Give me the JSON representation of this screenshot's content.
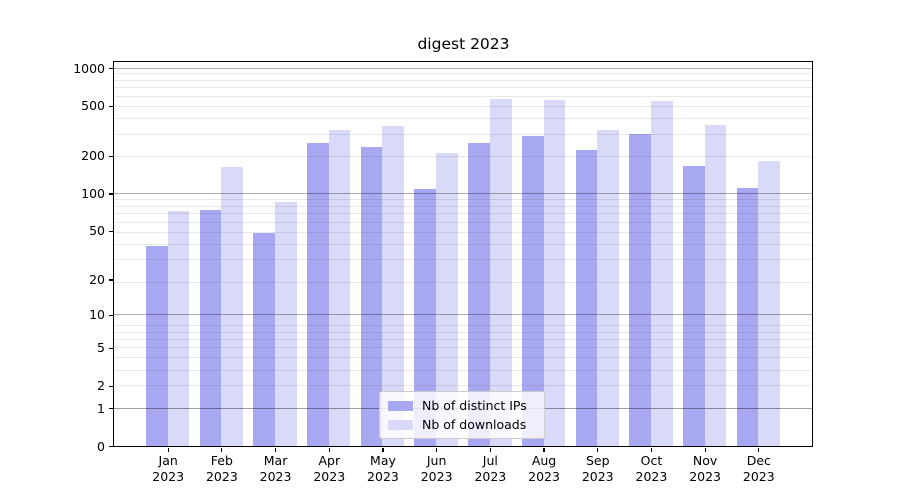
{
  "title": "digest 2023",
  "chart_data": {
    "type": "bar",
    "title": "digest 2023",
    "categories": [
      "Jan",
      "Feb",
      "Mar",
      "Apr",
      "May",
      "Jun",
      "Jul",
      "Aug",
      "Sep",
      "Oct",
      "Nov",
      "Dec"
    ],
    "category_year": "2023",
    "series": [
      {
        "name": "Nb of distinct IPs",
        "color": "#a8a8f2",
        "values": [
          38,
          74,
          48,
          255,
          237,
          109,
          252,
          287,
          223,
          299,
          167,
          111
        ]
      },
      {
        "name": "Nb of downloads",
        "color": "#d9d9f8",
        "values": [
          72,
          164,
          86,
          322,
          345,
          213,
          573,
          561,
          324,
          549,
          350,
          183
        ]
      }
    ],
    "xlabel": "",
    "ylabel": "",
    "y_ticks": [
      0,
      1,
      2,
      5,
      10,
      20,
      50,
      100,
      200,
      500,
      1000
    ],
    "scale": "log1p",
    "ylim": [
      0,
      1118
    ],
    "grid": true,
    "major_grid_at": [
      1,
      10,
      100,
      1000
    ],
    "legend_position": "lower center",
    "colors": {
      "major_grid": "rgba(0,0,0,0.32)",
      "minor_grid": "rgba(0,0,0,0.085)",
      "spine": "#000000",
      "legend_border": "#cccccc"
    }
  }
}
